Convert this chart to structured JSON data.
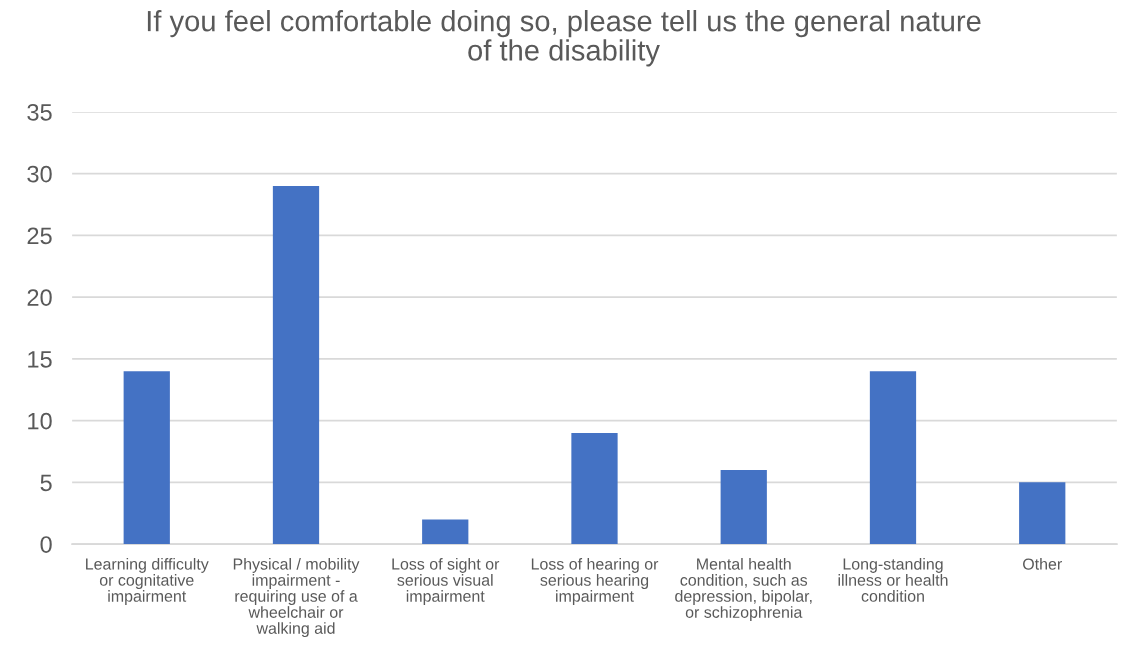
{
  "chart_data": {
    "type": "bar",
    "title": "If you feel comfortable doing so, please tell us the general nature of the disability",
    "categories": [
      "Learning difficulty or cognitative impairment",
      "Physical / mobility impairment - requiring use of a wheelchair or walking aid",
      "Loss of sight or serious visual impairment",
      "Loss of hearing or serious hearing impairment",
      "Mental health condition, such as depression, bipolar, or schizophrenia",
      "Long-standing illness or health condition",
      "Other"
    ],
    "values": [
      14,
      29,
      2,
      9,
      6,
      14,
      5
    ],
    "color": "#4472c4",
    "ylim": [
      0,
      35
    ],
    "yticks": [
      0,
      5,
      10,
      15,
      20,
      25,
      30,
      35
    ],
    "grid": "y"
  }
}
